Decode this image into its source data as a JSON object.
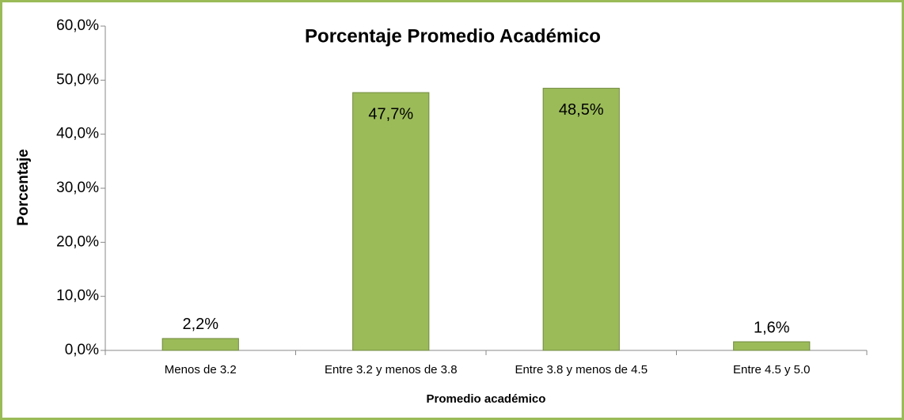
{
  "chart_data": {
    "type": "bar",
    "title": "Porcentaje Promedio Académico",
    "x_label": "Promedio académico",
    "y_label": "Porcentaje",
    "categories": [
      "Menos de 3.2",
      "Entre 3.2 y menos de 3.8",
      "Entre 3.8 y menos de 4.5",
      "Entre 4.5 y 5.0"
    ],
    "values": [
      2.2,
      47.7,
      48.5,
      1.6
    ],
    "value_labels": [
      "2,2%",
      "47,7%",
      "48,5%",
      "1,6%"
    ],
    "color": "#9bbb59",
    "ylim": [
      0,
      60
    ],
    "yticks": [
      {
        "value": 0,
        "label": "0,0%"
      },
      {
        "value": 10,
        "label": "10,0%"
      },
      {
        "value": 20,
        "label": "20,0%"
      },
      {
        "value": 30,
        "label": "30,0%"
      },
      {
        "value": 40,
        "label": "40,0%"
      },
      {
        "value": 50,
        "label": "50,0%"
      },
      {
        "value": 60,
        "label": "60,0%"
      }
    ],
    "grid": false
  }
}
